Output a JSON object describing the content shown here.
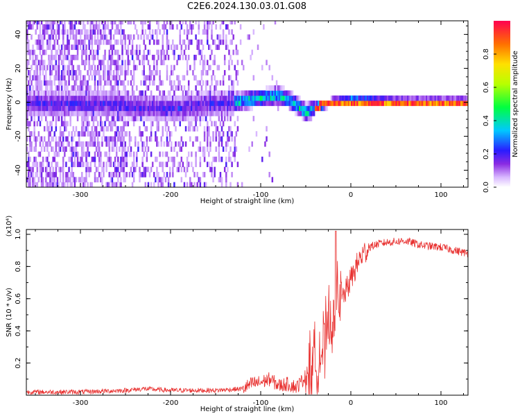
{
  "title": "C2E6.2024.130.03.01.G08",
  "colors": {
    "snr_line": "#e8302f",
    "axis": "#000000"
  },
  "chart_data": [
    {
      "type": "heatmap",
      "xlabel": "Height of straight line (km)",
      "ylabel": "Frequency (Hz)",
      "xlim": [
        -360,
        130
      ],
      "ylim": [
        -50,
        48
      ],
      "xticks": [
        -300,
        -200,
        -100,
        0,
        100
      ],
      "xtick_labels": [
        "-300",
        "-200",
        "-100",
        "0",
        "100"
      ],
      "yticks": [
        -40,
        -20,
        0,
        20,
        40
      ],
      "ytick_labels": [
        "-40",
        "-20",
        "0",
        "20",
        "40"
      ],
      "colorbar": {
        "label": "Normalized spectral amplitude",
        "range": [
          0,
          1
        ],
        "ticks": [
          0.0,
          0.2,
          0.4,
          0.6,
          0.8
        ],
        "tick_labels": [
          "0.0",
          "0.2",
          "0.4",
          "0.6",
          "0.8"
        ],
        "colormap": "rainbow"
      },
      "ridge_frequency": [
        [
          -270,
          -1
        ],
        [
          -250,
          -2
        ],
        [
          -220,
          -3
        ],
        [
          -200,
          -4
        ],
        [
          -170,
          -2
        ],
        [
          -150,
          -1
        ],
        [
          -130,
          0
        ],
        [
          -110,
          2
        ],
        [
          -95,
          3
        ],
        [
          -80,
          4
        ],
        [
          -70,
          2
        ],
        [
          -60,
          -2
        ],
        [
          -50,
          -6
        ],
        [
          -40,
          -3
        ],
        [
          -30,
          -1
        ],
        [
          -20,
          0
        ],
        [
          0,
          0.5
        ],
        [
          50,
          0
        ],
        [
          130,
          0
        ]
      ]
    },
    {
      "type": "line",
      "xlabel": "Height of straight line (km)",
      "ylabel": "SNR (10 * v/v)",
      "scale_label": "(x10⁴)",
      "xlim": [
        -360,
        130
      ],
      "ylim": [
        0,
        1.03
      ],
      "xticks": [
        -300,
        -200,
        -100,
        0,
        100
      ],
      "xtick_labels": [
        "-300",
        "-200",
        "-100",
        "0",
        "100"
      ],
      "yticks": [
        0.2,
        0.4,
        0.6,
        0.8,
        1.0
      ],
      "ytick_labels": [
        "0.2",
        "0.4",
        "0.6",
        "0.8",
        "1.0"
      ],
      "series": [
        {
          "color": "#e8302f",
          "x": [
            -360,
            -300,
            -250,
            -230,
            -200,
            -150,
            -120,
            -110,
            -100,
            -90,
            -80,
            -70,
            -60,
            -50,
            -40,
            -30,
            -25,
            -20,
            -15,
            -10,
            -5,
            0,
            10,
            20,
            30,
            40,
            60,
            80,
            100,
            130
          ],
          "y": [
            0.02,
            0.02,
            0.03,
            0.04,
            0.03,
            0.03,
            0.04,
            0.07,
            0.08,
            0.1,
            0.06,
            0.07,
            0.05,
            0.12,
            0.2,
            0.3,
            0.4,
            0.5,
            0.55,
            0.6,
            0.65,
            0.72,
            0.85,
            0.92,
            0.94,
            0.95,
            0.96,
            0.93,
            0.92,
            0.88
          ]
        }
      ]
    }
  ]
}
